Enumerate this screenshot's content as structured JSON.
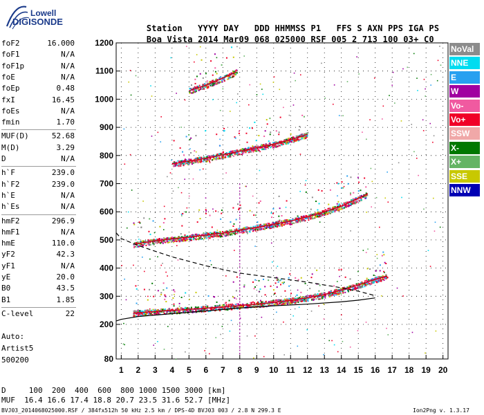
{
  "logo": {
    "line1": "Lowell",
    "line2": "DIGISONDE"
  },
  "header": {
    "labels": [
      "Station",
      "YYYY DAY",
      "DDD HHMMSS",
      "P1",
      "FFS",
      "S",
      "AXN",
      "PPS",
      "IGA",
      "PS"
    ],
    "values": [
      "Boa Vista",
      "2014 Mar09",
      "068 025000",
      "RSF",
      "005",
      "2",
      "713",
      "100",
      "03+",
      "C0"
    ]
  },
  "params": [
    {
      "name": "foF2",
      "value": "16.000"
    },
    {
      "name": "foF1",
      "value": "N/A"
    },
    {
      "name": "foF1p",
      "value": "N/A"
    },
    {
      "name": "foE",
      "value": "N/A"
    },
    {
      "name": "foEp",
      "value": "0.48"
    },
    {
      "name": "fxI",
      "value": "16.45"
    },
    {
      "name": "foEs",
      "value": "N/A"
    },
    {
      "name": "fmin",
      "value": "1.70"
    },
    {
      "name": "MUF(D)",
      "value": "52.68"
    },
    {
      "name": "M(D)",
      "value": "3.29"
    },
    {
      "name": "D",
      "value": "N/A"
    },
    {
      "name": "h`F",
      "value": "239.0"
    },
    {
      "name": "h`F2",
      "value": "239.0"
    },
    {
      "name": "h`E",
      "value": "N/A"
    },
    {
      "name": "h`Es",
      "value": "N/A"
    },
    {
      "name": "hmF2",
      "value": "296.9"
    },
    {
      "name": "hmF1",
      "value": "N/A"
    },
    {
      "name": "hmE",
      "value": "110.0"
    },
    {
      "name": "yF2",
      "value": "42.3"
    },
    {
      "name": "yF1",
      "value": "N/A"
    },
    {
      "name": "yE",
      "value": "20.0"
    },
    {
      "name": "B0",
      "value": "43.5"
    },
    {
      "name": "B1",
      "value": "1.85"
    },
    {
      "name": "C-level",
      "value": "22"
    }
  ],
  "misc": {
    "auto": "Auto:",
    "artist": "Artist5",
    "code": "500200"
  },
  "legend": [
    {
      "label": "NoVal",
      "color": "#8c8c8c"
    },
    {
      "label": "NNE",
      "color": "#00dcf0"
    },
    {
      "label": "E",
      "color": "#28a0f0"
    },
    {
      "label": "W",
      "color": "#a000a0"
    },
    {
      "label": "Vo-",
      "color": "#f05aa0"
    },
    {
      "label": "Vo+",
      "color": "#f00028"
    },
    {
      "label": "SSW",
      "color": "#f0a8a8"
    },
    {
      "label": "X-",
      "color": "#007800"
    },
    {
      "label": "X+",
      "color": "#64b464"
    },
    {
      "label": "SSE",
      "color": "#c8c800"
    },
    {
      "label": "NNW",
      "color": "#0000b4"
    }
  ],
  "footer": {
    "d_line": "D     100  200  400  600  800 1000 1500 3000 [km]",
    "muf_line": "MUF  16.4 16.6 17.4 18.8 20.7 23.5 31.6 52.7 [MHz]",
    "file_line": "BVJ03_2014068025000.RSF / 384fx512h 50 kHz 2.5 km / DPS-4D BVJ03 003 / 2.8 N 299.3 E",
    "version": "Ion2Png v. 1.3.17"
  },
  "chart_data": {
    "type": "scatter",
    "title": "",
    "xlabel": "",
    "ylabel": "",
    "xlim": [
      0.7,
      20.3
    ],
    "ylim": [
      80,
      1200
    ],
    "x_ticks": [
      1,
      2,
      3,
      4,
      5,
      6,
      7,
      8,
      9,
      10,
      11,
      12,
      13,
      14,
      15,
      16,
      17,
      18,
      19,
      20
    ],
    "x_tick_labels": [
      "1",
      "2",
      "3",
      "4",
      "5",
      "6",
      "7",
      "8",
      "9",
      "10",
      "11",
      "12",
      "13",
      "14",
      "15",
      "16",
      "17",
      "18",
      "19",
      "20"
    ],
    "y_ticks": [
      80,
      200,
      300,
      400,
      500,
      600,
      700,
      800,
      900,
      1000,
      1100,
      1200
    ],
    "y_tick_labels": [
      "80",
      "200",
      "300",
      "400",
      "500",
      "600",
      "700",
      "800",
      "900",
      "1000",
      "1100",
      "1200"
    ],
    "grid": true,
    "traces": [
      {
        "name": "F2 trace (1st hop)",
        "x": [
          1.7,
          3,
          5,
          7,
          9,
          10,
          11,
          12,
          13,
          14,
          15,
          16,
          16.7
        ],
        "y": [
          240,
          246,
          253,
          262,
          272,
          278,
          285,
          294,
          306,
          322,
          340,
          360,
          372
        ]
      },
      {
        "name": "F2 trace (2nd hop)",
        "x": [
          1.7,
          3,
          5,
          7,
          9,
          10,
          11,
          12,
          13,
          14,
          15,
          15.5
        ],
        "y": [
          485,
          497,
          510,
          524,
          545,
          556,
          567,
          582,
          600,
          620,
          648,
          662
        ]
      },
      {
        "name": "F2 trace (3rd hop)",
        "x": [
          4,
          6,
          8,
          10,
          11,
          12
        ],
        "y": [
          770,
          790,
          815,
          840,
          856,
          875
        ]
      },
      {
        "name": "F2 trace (4th hop)",
        "x": [
          5,
          6,
          7,
          7.8
        ],
        "y": [
          1030,
          1050,
          1075,
          1098
        ]
      }
    ],
    "profile_solid": {
      "x": [
        0.7,
        1,
        2,
        4,
        6,
        8,
        10,
        12,
        14,
        15,
        16
      ],
      "y": [
        212,
        218,
        228,
        238,
        248,
        258,
        266,
        272,
        280,
        286,
        294
      ]
    },
    "profile_dashed": {
      "x": [
        0.7,
        1,
        2,
        3,
        4,
        6,
        8,
        10,
        12,
        14,
        15,
        16
      ],
      "y": [
        525,
        505,
        480,
        460,
        440,
        408,
        382,
        366,
        350,
        330,
        318,
        302
      ]
    }
  }
}
